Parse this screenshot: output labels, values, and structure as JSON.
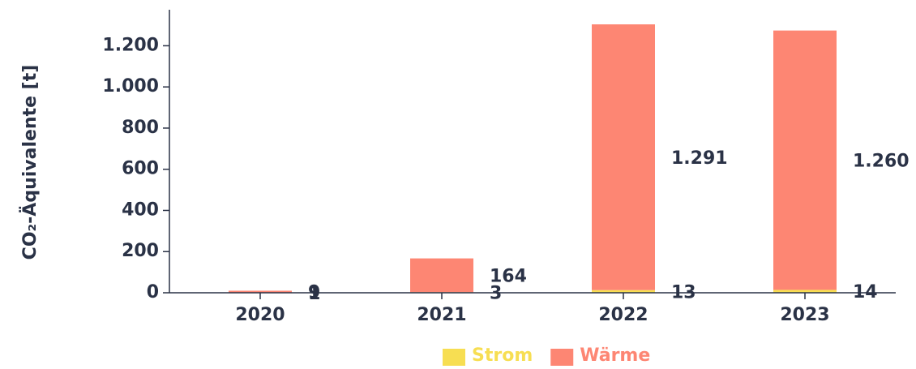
{
  "chart_data": {
    "type": "stacked_bar",
    "y_label": "CO₂-Äquivalente [t]",
    "categories": [
      "2020",
      "2021",
      "2022",
      "2023"
    ],
    "series": [
      {
        "name": "Strom",
        "color": "#f7de52",
        "values": [
          1,
          3,
          13,
          14
        ]
      },
      {
        "name": "Wärme",
        "color": "#fd8673",
        "values": [
          9,
          164,
          1291,
          1260
        ],
        "value_labels": [
          "9",
          "164",
          "1.291",
          "1.260"
        ]
      }
    ],
    "ylim": [
      0,
      1375
    ],
    "yticks": [
      0,
      200,
      400,
      600,
      800,
      {
        "value": 1000,
        "label": "1.000"
      },
      {
        "value": 1200,
        "label": "1.200"
      }
    ],
    "legend": "bottom"
  }
}
